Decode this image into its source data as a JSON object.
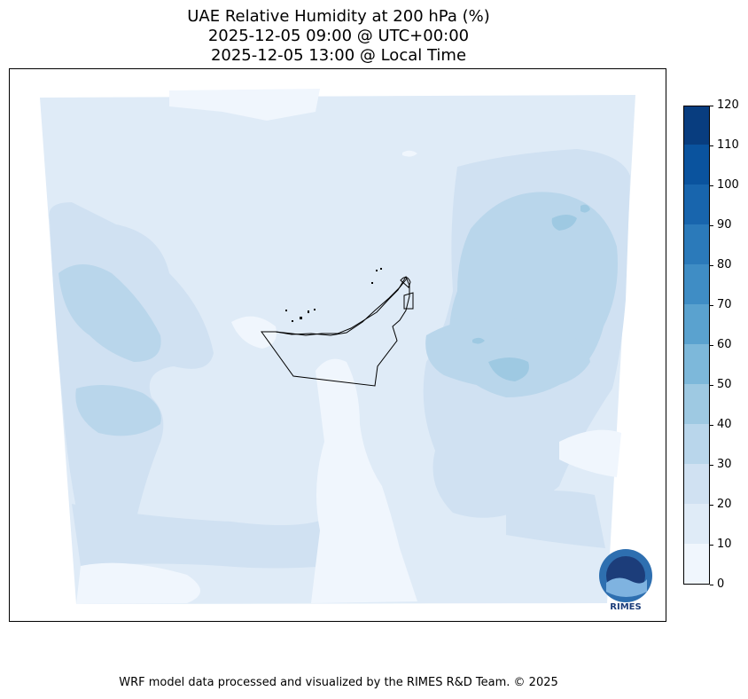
{
  "title": {
    "line1": "UAE Relative Humidity at 200 hPa (%)",
    "line2": "2025-12-05 09:00 @ UTC+00:00",
    "line3": "2025-12-05 13:00 @ Local Time"
  },
  "colorbar": {
    "ticks": [
      "0",
      "10",
      "20",
      "30",
      "40",
      "50",
      "60",
      "70",
      "80",
      "90",
      "100",
      "110",
      "120"
    ],
    "colors": [
      "#f0f6fd",
      "#dfebf7",
      "#d0e1f2",
      "#b9d6eb",
      "#9ec9e2",
      "#7db8da",
      "#5aa2cf",
      "#3f8dc5",
      "#2b7aba",
      "#1865ad",
      "#0a539e",
      "#083d7f"
    ]
  },
  "logo": {
    "text": "RIMES"
  },
  "footer": "WRF model data processed and visualized by the RIMES R&D Team. © 2025"
}
